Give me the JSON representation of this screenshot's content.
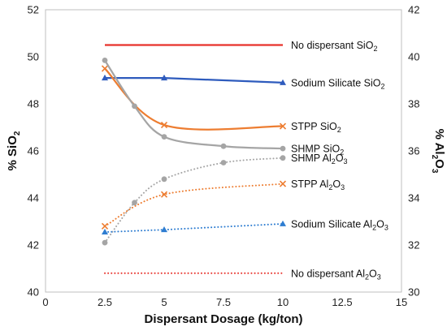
{
  "chart_data": {
    "type": "line",
    "xlabel": "Dispersant Dosage (kg/ton)",
    "ylabel_left": "% SiO",
    "ylabel_left_sub": "2",
    "ylabel_right": "% Al",
    "ylabel_right_sub1": "2",
    "ylabel_right_mid": "O",
    "ylabel_right_sub2": "3",
    "xlim": [
      0,
      15
    ],
    "xticks": [
      "0",
      "2.5",
      "5",
      "7.5",
      "10",
      "12.5",
      "15"
    ],
    "ylim_left": [
      40,
      52
    ],
    "yticks_left": [
      "40",
      "42",
      "44",
      "46",
      "48",
      "50",
      "52"
    ],
    "ylim_right": [
      30,
      42
    ],
    "yticks_right": [
      "30",
      "32",
      "34",
      "36",
      "38",
      "40",
      "42"
    ],
    "grid": false,
    "series": [
      {
        "axis": "left",
        "color": "#e8322b",
        "style": "solid",
        "marker": "none",
        "smooth": false,
        "x": [
          2.5,
          10
        ],
        "y": [
          50.5,
          50.5
        ],
        "label_parts": [
          {
            "t": "No dispersant SiO"
          },
          {
            "t": "2",
            "sub": true
          }
        ]
      },
      {
        "axis": "left",
        "color": "#2e5bbd",
        "style": "solid",
        "marker": "triangle",
        "smooth": false,
        "x": [
          2.5,
          5,
          10
        ],
        "y": [
          49.1,
          49.1,
          48.9
        ],
        "label_parts": [
          {
            "t": "Sodium Silicate SiO"
          },
          {
            "t": "2",
            "sub": true
          }
        ]
      },
      {
        "axis": "left",
        "color": "#ed7d31",
        "style": "solid",
        "marker": "x",
        "smooth": true,
        "x": [
          2.5,
          5,
          10
        ],
        "y": [
          49.5,
          47.1,
          47.05
        ],
        "label_parts": [
          {
            "t": "STPP SiO"
          },
          {
            "t": "2",
            "sub": true
          }
        ]
      },
      {
        "axis": "left",
        "color": "#a5a5a5",
        "style": "solid",
        "marker": "circle",
        "smooth": true,
        "x": [
          2.5,
          3.75,
          5,
          7.5,
          10
        ],
        "y": [
          49.85,
          47.9,
          46.6,
          46.2,
          46.1
        ],
        "label_parts": [
          {
            "t": "SHMP SiO"
          },
          {
            "t": "2",
            "sub": true
          }
        ]
      },
      {
        "axis": "right",
        "color": "#a5a5a5",
        "style": "dotted",
        "marker": "circle",
        "smooth": true,
        "x": [
          2.5,
          3.75,
          5,
          7.5,
          10
        ],
        "y": [
          32.1,
          33.8,
          34.8,
          35.5,
          35.7
        ],
        "label_parts": [
          {
            "t": "SHMP Al"
          },
          {
            "t": "2",
            "sub": true
          },
          {
            "t": "O"
          },
          {
            "t": "3",
            "sub": true
          }
        ]
      },
      {
        "axis": "right",
        "color": "#ed7d31",
        "style": "dotted",
        "marker": "x",
        "smooth": true,
        "x": [
          2.5,
          5,
          10
        ],
        "y": [
          32.8,
          34.15,
          34.6
        ],
        "label_parts": [
          {
            "t": "STPP Al"
          },
          {
            "t": "2",
            "sub": true
          },
          {
            "t": "O"
          },
          {
            "t": "3",
            "sub": true
          }
        ]
      },
      {
        "axis": "right",
        "color": "#2e7dd1",
        "style": "dotted",
        "marker": "triangle",
        "smooth": false,
        "x": [
          2.5,
          5,
          10
        ],
        "y": [
          32.55,
          32.65,
          32.9
        ],
        "label_parts": [
          {
            "t": "Sodium Silicate Al"
          },
          {
            "t": "2",
            "sub": true
          },
          {
            "t": "O"
          },
          {
            "t": "3",
            "sub": true
          }
        ]
      },
      {
        "axis": "right",
        "color": "#e8322b",
        "style": "dotted",
        "marker": "none",
        "smooth": false,
        "x": [
          2.5,
          10
        ],
        "y": [
          30.8,
          30.8
        ],
        "label_parts": [
          {
            "t": "No dispersant Al"
          },
          {
            "t": "2",
            "sub": true
          },
          {
            "t": "O"
          },
          {
            "t": "3",
            "sub": true
          }
        ]
      }
    ]
  }
}
